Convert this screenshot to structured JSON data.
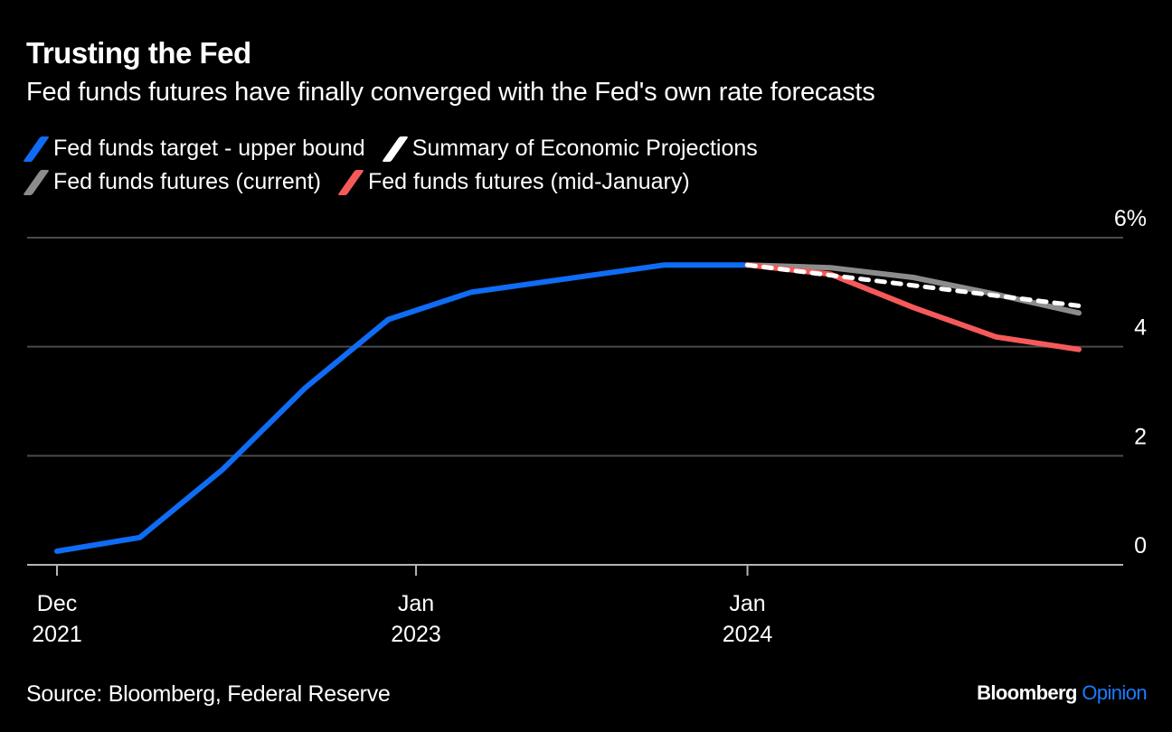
{
  "header": {
    "title": "Trusting the Fed",
    "subtitle": "Fed funds futures have finally converged with the Fed's own rate forecasts"
  },
  "footer": {
    "source": "Source: Bloomberg, Federal Reserve",
    "brand_main": "Bloomberg",
    "brand_accent": "Opinion",
    "brand_accent_color": "#1b7bff"
  },
  "chart_data": {
    "type": "line",
    "title": "Trusting the Fed",
    "subtitle": "Fed funds futures have finally converged with the Fed's own rate forecasts",
    "xlabel": "",
    "ylabel": "",
    "ylim": [
      0,
      6
    ],
    "y_ticks": [
      {
        "value": 0,
        "label": "0"
      },
      {
        "value": 2,
        "label": "2"
      },
      {
        "value": 4,
        "label": "4"
      },
      {
        "value": 6,
        "label": "6%"
      }
    ],
    "x_axis": {
      "unit": "months since Dec 2021",
      "range": [
        0,
        28
      ],
      "ticks": [
        {
          "value": 0,
          "label_line1": "Dec",
          "label_line2": "2021"
        },
        {
          "value": 13,
          "label_line1": "Jan",
          "label_line2": "2023"
        },
        {
          "value": 25,
          "label_line1": "Jan",
          "label_line2": "2024"
        }
      ]
    },
    "grid": true,
    "legend_position": "top-left",
    "series": [
      {
        "name": "Fed funds target - upper bound",
        "color": "#0f6cf5",
        "style": "solid",
        "points": [
          [
            0,
            0.25
          ],
          [
            3,
            0.5
          ],
          [
            6,
            1.75
          ],
          [
            9,
            3.25
          ],
          [
            12,
            4.5
          ],
          [
            15,
            5.0
          ],
          [
            22,
            5.5
          ],
          [
            25,
            5.5
          ]
        ]
      },
      {
        "name": "Fed funds futures (current)",
        "color": "#8c8c8c",
        "style": "solid",
        "points": [
          [
            25,
            5.5
          ],
          [
            28,
            5.45
          ],
          [
            31,
            5.27
          ],
          [
            34,
            4.96
          ],
          [
            37,
            4.62
          ]
        ]
      },
      {
        "name": "Fed funds futures (mid-January)",
        "color": "#f55a5a",
        "style": "solid",
        "points": [
          [
            25,
            5.5
          ],
          [
            28,
            5.33
          ],
          [
            31,
            4.72
          ],
          [
            34,
            4.18
          ],
          [
            37,
            3.95
          ]
        ]
      },
      {
        "name": "Summary of Economic Projections",
        "color": "#ffffff",
        "style": "dashed",
        "points": [
          [
            25,
            5.5
          ],
          [
            37,
            4.75
          ]
        ]
      }
    ],
    "legend": [
      {
        "label": "Fed funds target - upper bound",
        "color": "#0f6cf5"
      },
      {
        "label": "Summary of Economic Projections",
        "color": "#ffffff"
      },
      {
        "label": "Fed funds futures (current)",
        "color": "#8c8c8c"
      },
      {
        "label": "Fed funds futures (mid-January)",
        "color": "#f55a5a"
      }
    ]
  }
}
